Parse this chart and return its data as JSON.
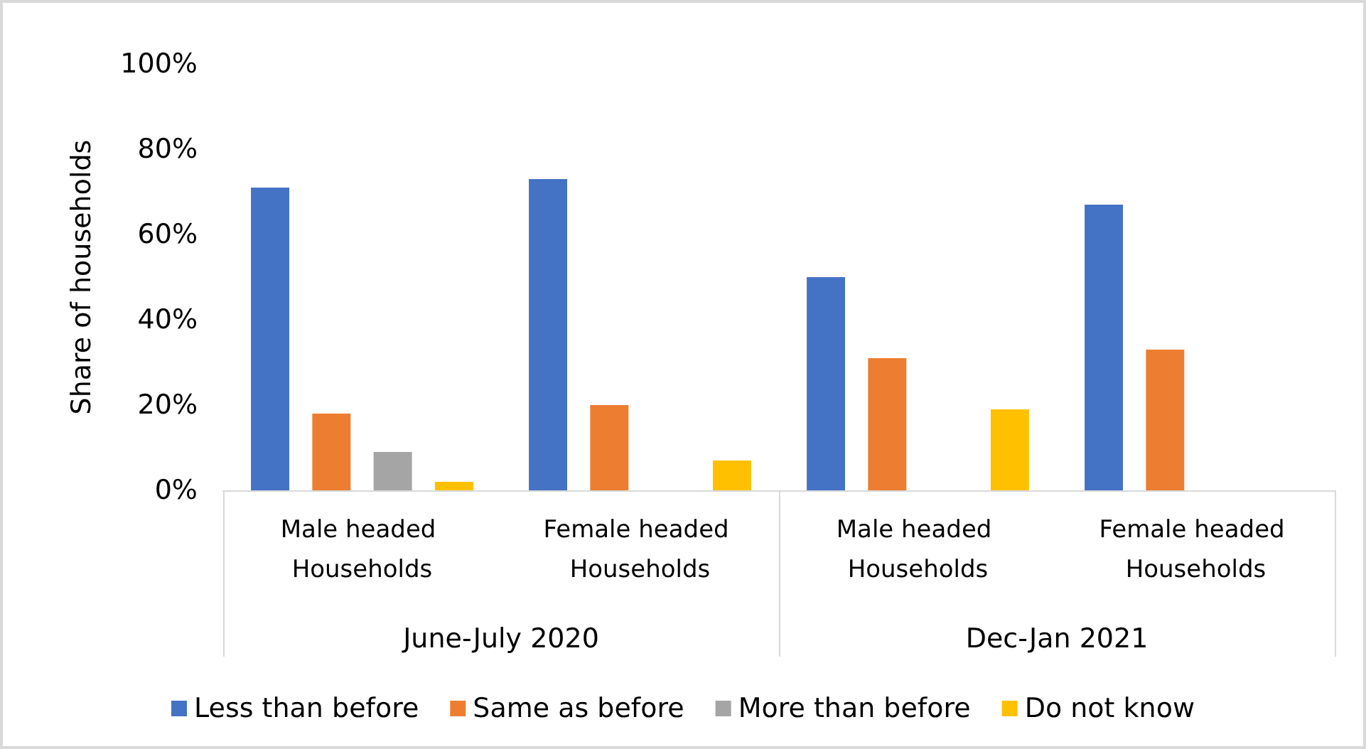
{
  "chart_data": {
    "type": "bar",
    "ylabel": "Share of households",
    "categories": [
      "Male headed Households",
      "Female headed Households",
      "Male headed Households",
      "Female headed Households"
    ],
    "annotations": [
      "June-July 2020",
      "Dec-Jan 2021"
    ],
    "series": [
      {
        "name": "Less than before",
        "color": "#4472c4",
        "values": [
          71,
          73,
          50,
          67
        ]
      },
      {
        "name": "Same as before",
        "color": "#ed7d31",
        "values": [
          18,
          20,
          31,
          33
        ]
      },
      {
        "name": "More than before",
        "color": "#a5a5a5",
        "values": [
          9,
          null,
          null,
          null
        ]
      },
      {
        "name": "Do not know",
        "color": "#ffc000",
        "values": [
          2,
          7,
          19,
          null
        ]
      }
    ],
    "ylim": [
      0,
      100
    ],
    "yticks": [
      {
        "value": 0,
        "label": "0%"
      },
      {
        "value": 20,
        "label": "20%"
      },
      {
        "value": 40,
        "label": "40%"
      },
      {
        "value": 60,
        "label": "60%"
      },
      {
        "value": 80,
        "label": "80%"
      },
      {
        "value": 100,
        "label": "100%"
      }
    ],
    "grid": false,
    "legend": "bottom"
  }
}
